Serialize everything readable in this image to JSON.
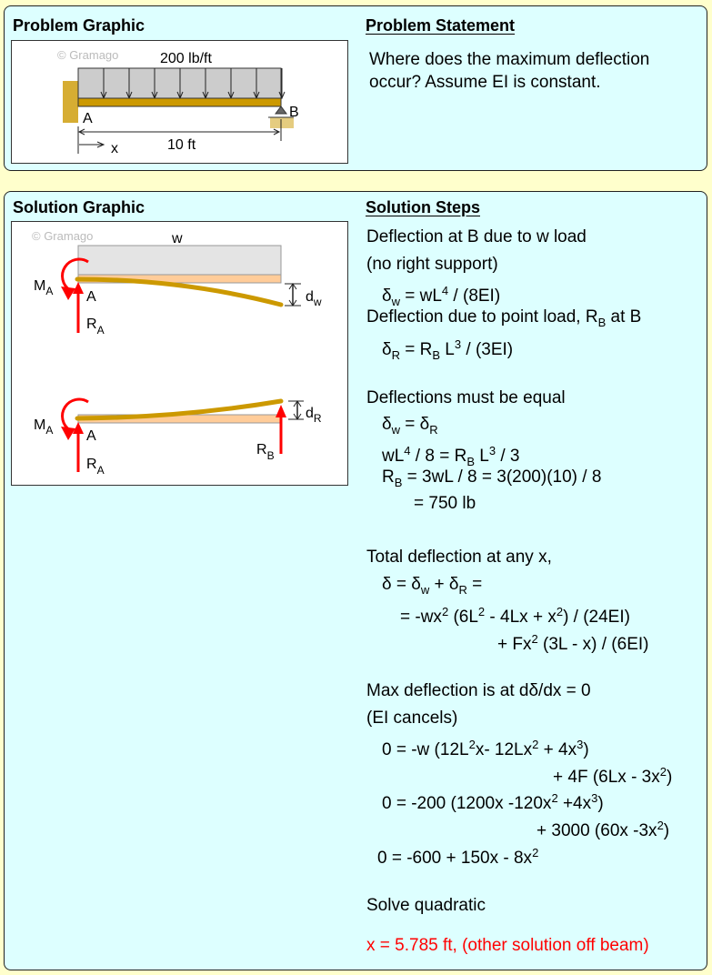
{
  "problem": {
    "graphic_title": "Problem Graphic",
    "statement_title": "Problem Statement",
    "statement": "Where does the maximum deflection occur? Assume EI is constant.",
    "graphic": {
      "watermark": "© Gramago",
      "load": "200 lb/ft",
      "label_a": "A",
      "label_b": "B",
      "length": "10 ft",
      "x_label": "x"
    }
  },
  "solution": {
    "graphic_title": "Solution Graphic",
    "steps_title": "Solution Steps",
    "graphic": {
      "watermark": "© Gramago",
      "w": "w",
      "ma": "M",
      "ma_sub": "A",
      "a": "A",
      "ra": "R",
      "ra_sub": "A",
      "dw": "d",
      "dw_sub": "w",
      "dr": "d",
      "dr_sub": "R",
      "rb": "R",
      "rb_sub": "B"
    },
    "steps": [
      [
        {
          "t": "Deflection at B due to w load"
        }
      ],
      [
        {
          "t": "(no right support)"
        }
      ],
      [
        {
          "t": "δ"
        },
        {
          "t": "w",
          "s": "sub"
        },
        {
          "t": " = wL"
        },
        {
          "t": "4",
          "s": "sup"
        },
        {
          "t": " / (8EI)"
        }
      ],
      [
        {
          "t": "Deflection due to point load, R"
        },
        {
          "t": "B",
          "s": "sub"
        },
        {
          "t": " at B"
        }
      ],
      [
        {
          "t": "δ"
        },
        {
          "t": "R",
          "s": "sub"
        },
        {
          "t": " = R"
        },
        {
          "t": "B",
          "s": "sub"
        },
        {
          "t": " L"
        },
        {
          "t": "3",
          "s": "sup"
        },
        {
          "t": " / (3EI)"
        }
      ],
      [
        {
          "t": "Deflections must be equal"
        }
      ],
      [
        {
          "t": "δ"
        },
        {
          "t": "w",
          "s": "sub"
        },
        {
          "t": " = δ"
        },
        {
          "t": "R",
          "s": "sub"
        }
      ],
      [
        {
          "t": "wL"
        },
        {
          "t": "4",
          "s": "sup"
        },
        {
          "t": " / 8 = R"
        },
        {
          "t": "B",
          "s": "sub"
        },
        {
          "t": " L"
        },
        {
          "t": "3",
          "s": "sup"
        },
        {
          "t": " / 3"
        }
      ],
      [
        {
          "t": "R"
        },
        {
          "t": "B",
          "s": "sub"
        },
        {
          "t": " = 3wL / 8 = 3(200)(10) / 8"
        }
      ],
      [
        {
          "t": "= 750 lb"
        }
      ],
      [
        {
          "t": "Total deflection at any x,"
        }
      ],
      [
        {
          "t": "δ = δ"
        },
        {
          "t": "w",
          "s": "sub"
        },
        {
          "t": " + δ"
        },
        {
          "t": "R",
          "s": "sub"
        },
        {
          "t": " ="
        }
      ],
      [
        {
          "t": "= -wx"
        },
        {
          "t": "2",
          "s": "sup"
        },
        {
          "t": " (6L"
        },
        {
          "t": "2",
          "s": "sup"
        },
        {
          "t": " - 4Lx + x"
        },
        {
          "t": "2",
          "s": "sup"
        },
        {
          "t": ") / (24EI)"
        }
      ],
      [
        {
          "t": "+ Fx"
        },
        {
          "t": "2",
          "s": "sup"
        },
        {
          "t": " (3L - x) / (6EI)"
        }
      ],
      [
        {
          "t": "Max deflection is at dδ/dx = 0"
        }
      ],
      [
        {
          "t": "(EI cancels)"
        }
      ],
      [
        {
          "t": "0 = -w (12L"
        },
        {
          "t": "2",
          "s": "sup"
        },
        {
          "t": "x- 12Lx"
        },
        {
          "t": "2",
          "s": "sup"
        },
        {
          "t": " + 4x"
        },
        {
          "t": "3",
          "s": "sup"
        },
        {
          "t": ")"
        }
      ],
      [
        {
          "t": "+ 4F (6Lx - 3x"
        },
        {
          "t": "2",
          "s": "sup"
        },
        {
          "t": ")"
        }
      ],
      [
        {
          "t": "0 = -200 (1200x -120x"
        },
        {
          "t": "2",
          "s": "sup"
        },
        {
          "t": " +4x"
        },
        {
          "t": "3",
          "s": "sup"
        },
        {
          "t": ")"
        }
      ],
      [
        {
          "t": "+ 3000 (60x -3x"
        },
        {
          "t": "2",
          "s": "sup"
        },
        {
          "t": ")"
        }
      ],
      [
        {
          "t": "0 = -600 + 150x - 8x"
        },
        {
          "t": "2",
          "s": "sup"
        }
      ],
      [
        {
          "t": "Solve quadratic"
        }
      ],
      [
        {
          "t": "x = 5.785 ft, (other solution off beam)"
        }
      ]
    ],
    "answer_color": "#FF0000"
  },
  "colors": {
    "page": "#FFFFCC",
    "panel": "#DDFFFF",
    "beam": "#CC9900",
    "force": "#FF0000"
  }
}
